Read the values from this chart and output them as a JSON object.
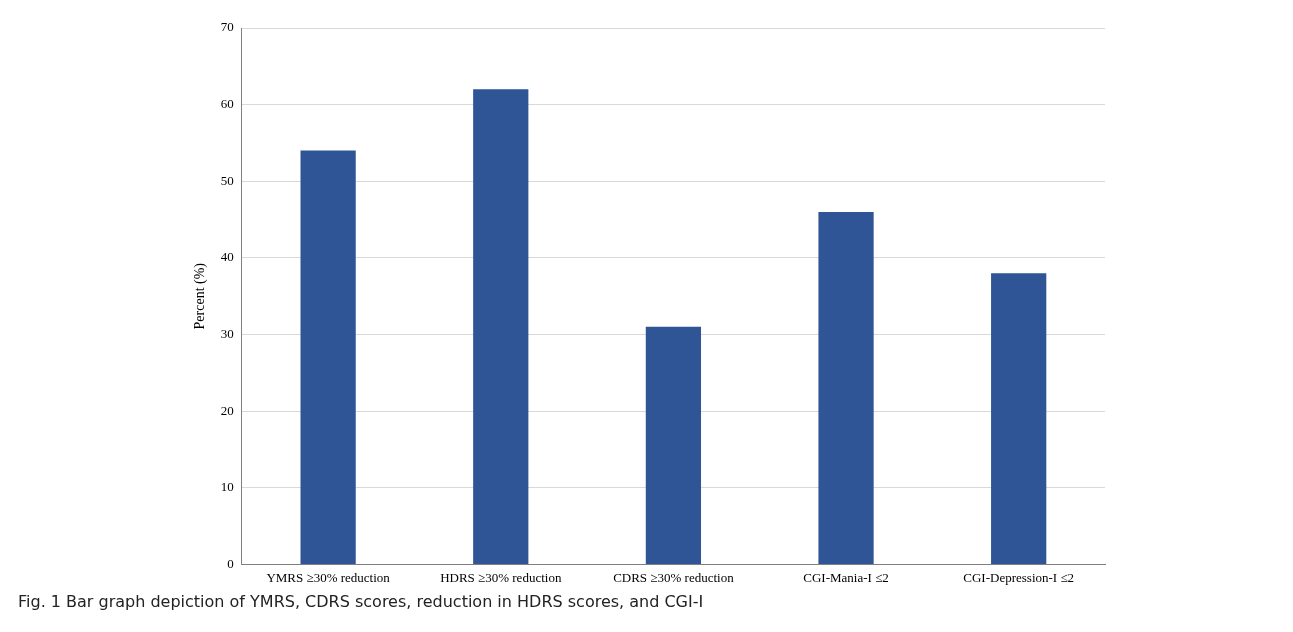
{
  "chart_data": {
    "type": "bar",
    "ylabel": "Percent (%)",
    "categories": [
      "YMRS ≥30% reduction",
      "HDRS ≥30% reduction",
      "CDRS ≥30% reduction",
      "CGI-Mania-I ≤2",
      "CGI-Depression-I ≤2"
    ],
    "values": [
      54,
      62,
      31,
      46,
      38
    ],
    "color": "#2f5597",
    "ylim": [
      0,
      70
    ],
    "yticks": [
      0,
      10,
      20,
      30,
      40,
      50,
      60,
      70
    ],
    "grid": "y",
    "annotations": [
      "Fig. 1  Bar graph depiction of YMRS, CDRS scores, reduction in HDRS scores, and CGI-I"
    ]
  }
}
